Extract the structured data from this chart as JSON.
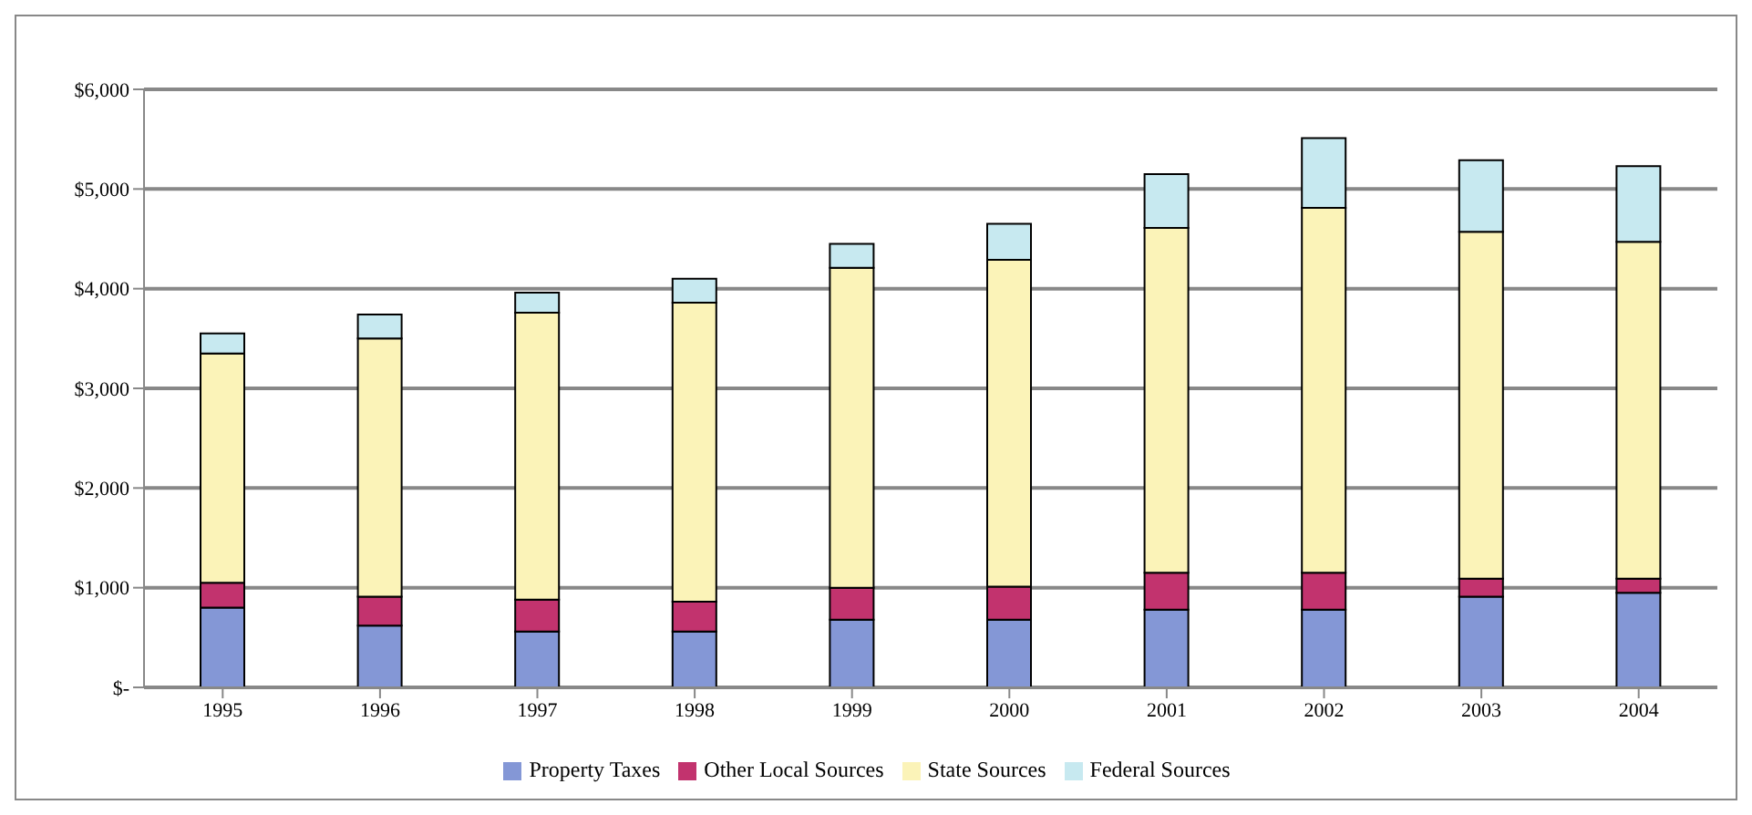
{
  "chart_data": {
    "type": "bar",
    "stacked": true,
    "categories": [
      "1995",
      "1996",
      "1997",
      "1998",
      "1999",
      "2000",
      "2001",
      "2002",
      "2003",
      "2004"
    ],
    "series": [
      {
        "name": "Property Taxes",
        "color": "#8497d6",
        "values": [
          800,
          620,
          560,
          560,
          680,
          680,
          780,
          780,
          910,
          950
        ]
      },
      {
        "name": "Other Local Sources",
        "color": "#c2336e",
        "values": [
          250,
          290,
          320,
          300,
          320,
          330,
          370,
          370,
          180,
          140
        ]
      },
      {
        "name": "State Sources",
        "color": "#fbf3b8",
        "values": [
          2300,
          2590,
          2880,
          3000,
          3210,
          3280,
          3460,
          3660,
          3480,
          3380
        ]
      },
      {
        "name": "Federal Sources",
        "color": "#c7e9f0",
        "values": [
          200,
          240,
          200,
          240,
          240,
          360,
          540,
          700,
          720,
          760
        ]
      }
    ],
    "ylim": [
      0,
      6000
    ],
    "yticks": [
      {
        "value": 0,
        "label": "$-"
      },
      {
        "value": 1000,
        "label": "$1,000"
      },
      {
        "value": 2000,
        "label": "$2,000"
      },
      {
        "value": 3000,
        "label": "$3,000"
      },
      {
        "value": 4000,
        "label": "$4,000"
      },
      {
        "value": 5000,
        "label": "$5,000"
      },
      {
        "value": 6000,
        "label": "$6,000"
      }
    ],
    "grid": "y",
    "legend": "bottom"
  }
}
